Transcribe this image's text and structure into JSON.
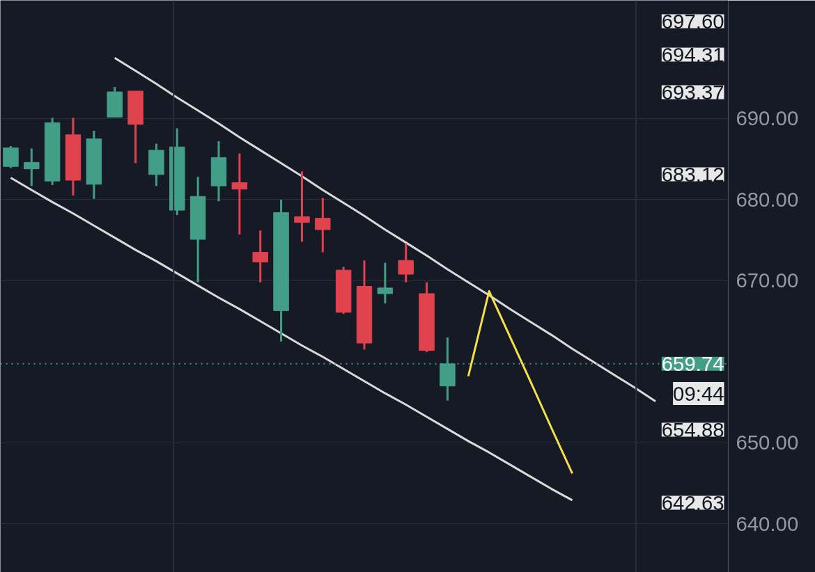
{
  "chart_data": {
    "type": "candlestick",
    "categories": [
      null,
      null,
      null,
      null,
      null,
      null,
      null,
      null,
      null,
      null,
      null,
      null,
      null,
      null,
      null,
      null,
      null,
      null,
      null,
      null,
      null,
      null,
      null,
      null,
      null,
      null,
      null,
      null,
      null,
      null,
      null,
      null
    ],
    "ohlc": [
      [
        684.1,
        686.6,
        683.9,
        686.4
      ],
      [
        683.8,
        686.3,
        681.7,
        684.6
      ],
      [
        682.3,
        690.1,
        681.8,
        689.5
      ],
      [
        688.0,
        690.1,
        680.5,
        682.4
      ],
      [
        681.9,
        688.5,
        680.1,
        687.5
      ],
      [
        690.2,
        693.9,
        690.2,
        693.3
      ],
      [
        693.4,
        693.4,
        684.5,
        689.3
      ],
      [
        683.1,
        686.9,
        681.7,
        686.1
      ],
      [
        678.7,
        688.8,
        678.1,
        686.5
      ],
      [
        675.1,
        682.8,
        669.8,
        680.4
      ],
      [
        681.7,
        687.2,
        679.8,
        685.2
      ],
      [
        682.1,
        685.7,
        675.7,
        681.3
      ],
      [
        673.5,
        676.2,
        669.8,
        672.3
      ],
      [
        666.3,
        680.0,
        662.5,
        678.4
      ],
      [
        677.9,
        683.5,
        674.8,
        677.2
      ],
      [
        677.7,
        680.2,
        673.5,
        676.3
      ],
      [
        671.3,
        671.7,
        665.9,
        666.1
      ],
      [
        669.3,
        672.5,
        661.5,
        662.3
      ],
      [
        668.4,
        672.2,
        667.2,
        669.1
      ],
      [
        672.5,
        674.6,
        669.8,
        670.8
      ],
      [
        668.4,
        669.8,
        661.2,
        661.4
      ],
      [
        657.0,
        663.0,
        655.2,
        659.74
      ],
      null,
      null,
      null,
      null,
      null,
      null,
      null,
      null,
      null,
      null
    ],
    "colors": [
      "#429e86",
      "#429e86",
      "#429e86",
      "#e0434e",
      "#429e86",
      "#429e86",
      "#e0434e",
      "#429e86",
      "#429e86",
      "#429e86",
      "#429e86",
      "#e0434e",
      "#e0434e",
      "#429e86",
      "#e0434e",
      "#e0434e",
      "#e0434e",
      "#e0434e",
      "#429e86",
      "#e0434e",
      "#e0434e",
      "#429e86",
      null,
      null,
      null,
      null,
      null,
      null,
      null,
      null,
      null,
      null
    ],
    "series": [
      {
        "type": "line",
        "color": "#d9d9d9",
        "values": [
          null,
          null,
          null,
          null,
          null,
          697.5,
          695.9,
          694.3,
          692.6,
          691.0,
          689.4,
          687.7,
          686.1,
          684.5,
          682.9,
          681.2,
          679.6,
          678.0,
          676.3,
          674.7,
          673.1,
          671.4,
          669.8,
          668.2,
          666.5,
          664.9,
          663.3,
          661.6,
          660.0,
          658.4,
          656.8,
          655.1
        ]
      },
      {
        "type": "line",
        "color": "#d9d9d9",
        "values": [
          682.7,
          681.2,
          679.7,
          678.3,
          676.8,
          675.3,
          673.8,
          672.4,
          670.9,
          669.4,
          667.9,
          666.5,
          665.0,
          663.5,
          662.0,
          660.6,
          659.1,
          657.6,
          656.1,
          654.7,
          653.2,
          651.7,
          650.2,
          648.8,
          647.3,
          645.8,
          644.3,
          642.9,
          null,
          null,
          null,
          null
        ]
      },
      {
        "type": "line",
        "color": "#f5e04a",
        "values": [
          null,
          null,
          null,
          null,
          null,
          null,
          null,
          null,
          null,
          null,
          null,
          null,
          null,
          null,
          null,
          null,
          null,
          null,
          null,
          null,
          null,
          null,
          658.2,
          668.7,
          663.1,
          657.5,
          651.8,
          646.2,
          null,
          null,
          null,
          null
        ]
      }
    ],
    "ylim": [
      634.0,
      704.6
    ],
    "yticks": [
      {
        "value": 640,
        "label": "640.00"
      },
      {
        "value": 650,
        "label": "650.00"
      },
      {
        "value": 670,
        "label": "670.00"
      },
      {
        "value": 680,
        "label": "680.00"
      },
      {
        "value": 690,
        "label": "690.00"
      }
    ],
    "grid": "y",
    "ref_lines": [
      {
        "axis": "y",
        "value": 659.74,
        "label": "659.74",
        "color": "#429e86",
        "line_style": "dotted"
      }
    ],
    "annotations": [
      "697.60",
      "694.31",
      "693.37",
      "683.12",
      "09:44",
      "654.88",
      "642.63"
    ]
  }
}
